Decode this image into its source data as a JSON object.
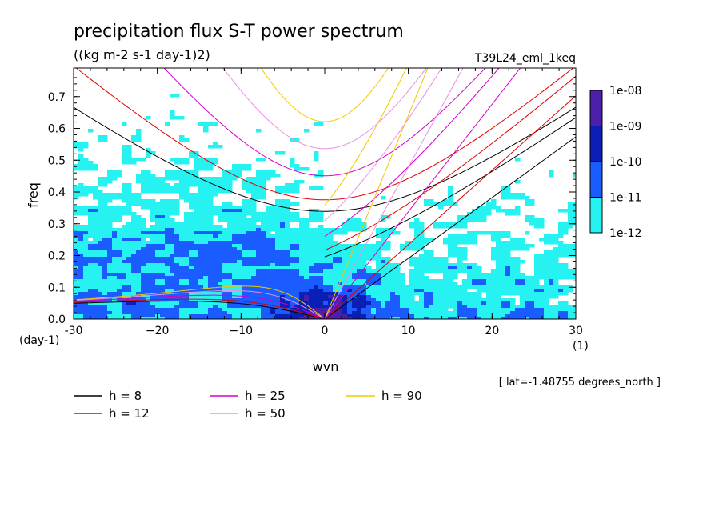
{
  "chart_data": {
    "type": "heatmap",
    "title": "precipitation flux S-T power spectrum",
    "subtitle": "((kg m-2 s-1 day-1)2)",
    "run_label": "T39L24_eml_1keq",
    "xlabel": "wvn",
    "ylabel": "freq",
    "x_unit": "(1)",
    "y_unit": "(day-1)",
    "xlim": [
      -30,
      30
    ],
    "ylim": [
      0,
      0.79
    ],
    "x_ticks": [
      -30,
      -20,
      -10,
      0,
      10,
      20,
      30
    ],
    "x_tick_labels": [
      "-30",
      "−20",
      "−10",
      "0",
      "10",
      "20",
      "30"
    ],
    "y_ticks": [
      0,
      0.1,
      0.2,
      0.3,
      0.4,
      0.5,
      0.6,
      0.7
    ],
    "y_tick_labels": [
      "0.0",
      "0.1",
      "0.2",
      "0.3",
      "0.4",
      "0.5",
      "0.6",
      "0.7"
    ],
    "location_note": "[ lat=-1.48755 degrees_north ]",
    "colorbar": {
      "labels": [
        "1e-08",
        "1e-09",
        "1e-10",
        "1e-11",
        "1e-12"
      ],
      "colors": [
        "#4b1fa8",
        "#0a1fb5",
        "#1a5cff",
        "#26f2f2"
      ]
    },
    "dispersion_curves": [
      {
        "name": "h =  8",
        "h": 8,
        "color": "#000000"
      },
      {
        "name": "h = 12",
        "h": 12,
        "color": "#e00000"
      },
      {
        "name": "h = 25",
        "h": 25,
        "color": "#d000c8"
      },
      {
        "name": "h = 50",
        "h": 50,
        "color": "#e890e0"
      },
      {
        "name": "h = 90",
        "h": 90,
        "color": "#f0c800"
      }
    ]
  }
}
